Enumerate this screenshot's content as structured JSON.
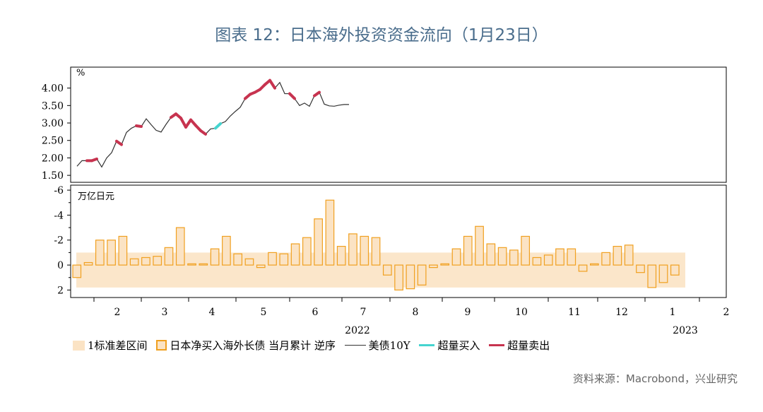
{
  "title": "图表 12：日本海外投资资金流向（1月23日）",
  "source": "资料来源：Macrobond，兴业研究",
  "colors": {
    "line": "#333333",
    "buy": "#45d4cf",
    "sell": "#c7334f",
    "band": "#fbe3c4",
    "bar_fill": "#fbe3c4",
    "bar_stroke": "#f0a020"
  },
  "legend": {
    "band": "1标准差区间",
    "bars": "日本净买入海外长债 当月累计 逆序",
    "line": "美债10Y",
    "buy": "超量买入",
    "sell": "超量卖出"
  },
  "chart_data": [
    {
      "type": "line",
      "panel": "top",
      "unit_label": "%",
      "ylim": [
        1.3,
        4.6
      ],
      "yticks": [
        "4.00",
        "3.50",
        "3.00",
        "2.50",
        "2.00",
        "1.50"
      ],
      "yticks_values": [
        4.0,
        3.5,
        3.0,
        2.5,
        2.0,
        1.5
      ],
      "series": [
        {
          "name": "美债10Y",
          "x": [
            "2022-01-03",
            "2022-01-10",
            "2022-01-17",
            "2022-01-24",
            "2022-01-31",
            "2022-02-07",
            "2022-02-14",
            "2022-02-21",
            "2022-02-28",
            "2022-03-07",
            "2022-03-14",
            "2022-03-21",
            "2022-03-28",
            "2022-04-04",
            "2022-04-11",
            "2022-04-18",
            "2022-04-25",
            "2022-05-02",
            "2022-05-09",
            "2022-05-16",
            "2022-05-23",
            "2022-05-30",
            "2022-06-06",
            "2022-06-13",
            "2022-06-20",
            "2022-06-27",
            "2022-07-04",
            "2022-07-11",
            "2022-07-18",
            "2022-07-25",
            "2022-08-01",
            "2022-08-08",
            "2022-08-15",
            "2022-08-22",
            "2022-08-29",
            "2022-09-05",
            "2022-09-12",
            "2022-09-19",
            "2022-09-26",
            "2022-10-03",
            "2022-10-10",
            "2022-10-17",
            "2022-10-24",
            "2022-10-31",
            "2022-11-07",
            "2022-11-14",
            "2022-11-21",
            "2022-11-28",
            "2022-12-05",
            "2022-12-12",
            "2022-12-19",
            "2022-12-26",
            "2023-01-02",
            "2023-01-09",
            "2023-01-16",
            "2023-01-23"
          ],
          "values": [
            1.76,
            1.92,
            1.92,
            1.92,
            1.97,
            1.74,
            2.0,
            2.15,
            2.48,
            2.38,
            2.73,
            2.85,
            2.92,
            2.9,
            3.12,
            2.95,
            2.79,
            2.74,
            2.96,
            3.16,
            3.26,
            3.14,
            2.88,
            3.09,
            2.93,
            2.78,
            2.68,
            2.83,
            2.85,
            2.98,
            3.04,
            3.2,
            3.33,
            3.45,
            3.7,
            3.82,
            3.88,
            3.96,
            4.1,
            4.22,
            4.0,
            4.16,
            3.84,
            3.84,
            3.7,
            3.5,
            3.57,
            3.48,
            3.78,
            3.88,
            3.54,
            3.49,
            3.48,
            3.51,
            3.53,
            3.53
          ],
          "highlight": [
            "",
            "",
            "sell",
            "sell",
            "sell",
            "",
            "",
            "",
            "sell",
            "sell",
            "",
            "",
            "sell",
            "sell",
            "",
            "",
            "",
            "",
            "",
            "sell",
            "sell",
            "sell",
            "sell",
            "sell",
            "sell",
            "sell",
            "sell",
            "",
            "buy",
            "buy",
            "",
            "",
            "",
            "",
            "sell",
            "sell",
            "sell",
            "sell",
            "sell",
            "sell",
            "sell",
            "",
            "",
            "sell",
            "sell",
            "",
            "",
            "",
            "sell",
            "sell",
            "",
            "",
            "",
            "",
            "",
            ""
          ]
        }
      ]
    },
    {
      "type": "bar",
      "panel": "bottom",
      "unit_label": "万亿日元",
      "reversed_axis": true,
      "ylim": [
        -6.4,
        2.6
      ],
      "yticks": [
        "-6",
        "-4",
        "-2",
        "0",
        "2"
      ],
      "yticks_values": [
        -6,
        -4,
        -2,
        0,
        2
      ],
      "band": [
        -1.0,
        1.8
      ],
      "values": [
        1.0,
        -0.2,
        -2.0,
        -2.0,
        -2.3,
        -0.5,
        -0.6,
        -0.7,
        -1.4,
        -3.0,
        -0.1,
        -0.1,
        -1.3,
        -2.3,
        -0.9,
        -0.5,
        0.2,
        -1.0,
        -0.9,
        -1.7,
        -2.2,
        -3.7,
        -5.2,
        -1.5,
        -2.5,
        -2.3,
        -2.2,
        0.8,
        2.0,
        1.9,
        1.6,
        0.2,
        -0.1,
        -1.3,
        -2.3,
        -3.1,
        -1.7,
        -1.4,
        -1.2,
        -2.3,
        -0.6,
        -0.8,
        -1.3,
        -1.3,
        0.5,
        -0.1,
        -1.0,
        -1.5,
        -1.6,
        0.6,
        1.8,
        1.4,
        0.8
      ]
    }
  ],
  "x_axis": {
    "month_labels": [
      "2",
      "3",
      "4",
      "5",
      "6",
      "7",
      "8",
      "9",
      "10",
      "11",
      "12",
      "1",
      "2"
    ],
    "year_labels": [
      "2022",
      "2023"
    ]
  }
}
